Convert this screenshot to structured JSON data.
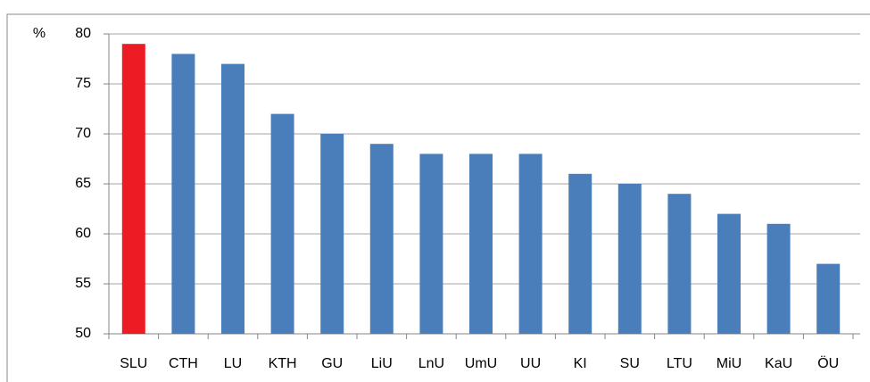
{
  "chart_data": {
    "type": "bar",
    "y_axis_label": "%",
    "categories": [
      "SLU",
      "CTH",
      "LU",
      "KTH",
      "GU",
      "LiU",
      "LnU",
      "UmU",
      "UU",
      "KI",
      "SU",
      "LTU",
      "MiU",
      "KaU",
      "ÖU"
    ],
    "values": [
      79,
      78,
      77,
      72,
      70,
      69,
      68,
      68,
      68,
      66,
      65,
      64,
      62,
      61,
      57
    ],
    "colors": [
      "#ed1c24",
      "#4a7ebb",
      "#4a7ebb",
      "#4a7ebb",
      "#4a7ebb",
      "#4a7ebb",
      "#4a7ebb",
      "#4a7ebb",
      "#4a7ebb",
      "#4a7ebb",
      "#4a7ebb",
      "#4a7ebb",
      "#4a7ebb",
      "#4a7ebb",
      "#4a7ebb"
    ],
    "ylim": [
      50,
      80
    ],
    "yticks": [
      50,
      55,
      60,
      65,
      70,
      75,
      80
    ],
    "grid": true
  }
}
